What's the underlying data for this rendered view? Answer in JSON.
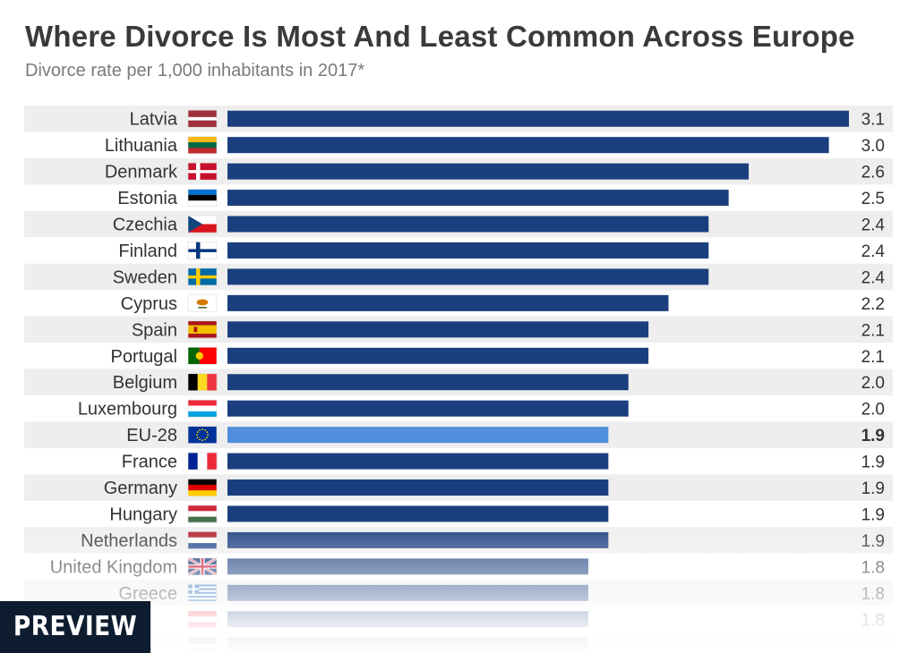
{
  "chart_data": {
    "type": "bar",
    "orientation": "horizontal",
    "title": "Where Divorce Is Most And Least Common Across Europe",
    "subtitle": "Divorce rate per 1,000 inhabitants in 2017*",
    "categories": [
      "Latvia",
      "Lithuania",
      "Denmark",
      "Estonia",
      "Czechia",
      "Finland",
      "Sweden",
      "Cyprus",
      "Spain",
      "Portugal",
      "Belgium",
      "Luxembourg",
      "EU-28",
      "France",
      "Germany",
      "Hungary",
      "Netherlands",
      "United Kingdom",
      "Greece",
      "",
      ""
    ],
    "values": [
      3.1,
      3.0,
      2.6,
      2.5,
      2.4,
      2.4,
      2.4,
      2.2,
      2.1,
      2.1,
      2.0,
      2.0,
      1.9,
      1.9,
      1.9,
      1.9,
      1.9,
      1.8,
      1.8,
      1.8,
      1.8
    ],
    "value_labels": [
      "3.1",
      "3.0",
      "2.6",
      "2.5",
      "2.4",
      "2.4",
      "2.4",
      "2.2",
      "2.1",
      "2.1",
      "2.0",
      "2.0",
      "1.9",
      "1.9",
      "1.9",
      "1.9",
      "1.9",
      "1.8",
      "1.8",
      "1.8",
      ""
    ],
    "highlight_category": "EU-28",
    "xlim": [
      0,
      3.1
    ],
    "grid": false,
    "legend": "none"
  },
  "flags": [
    "latvia-flag",
    "lithuania-flag",
    "denmark-flag",
    "estonia-flag",
    "czechia-flag",
    "finland-flag",
    "sweden-flag",
    "cyprus-flag",
    "spain-flag",
    "portugal-flag",
    "belgium-flag",
    "luxembourg-flag",
    "eu-flag",
    "france-flag",
    "germany-flag",
    "hungary-flag",
    "netherlands-flag",
    "uk-flag",
    "greece-flag",
    "austria-flag",
    "latvia-flag"
  ],
  "colors": {
    "bar": "#1b3f7e",
    "highlight_bar": "#4f8fdc",
    "row_band": "#eeeeee",
    "label_text": "#333333",
    "title_text": "#3a3a3a",
    "subtitle_text": "#7a7a7a",
    "badge_background": "#0e1c2f"
  },
  "badge": {
    "label": "PREVIEW"
  }
}
